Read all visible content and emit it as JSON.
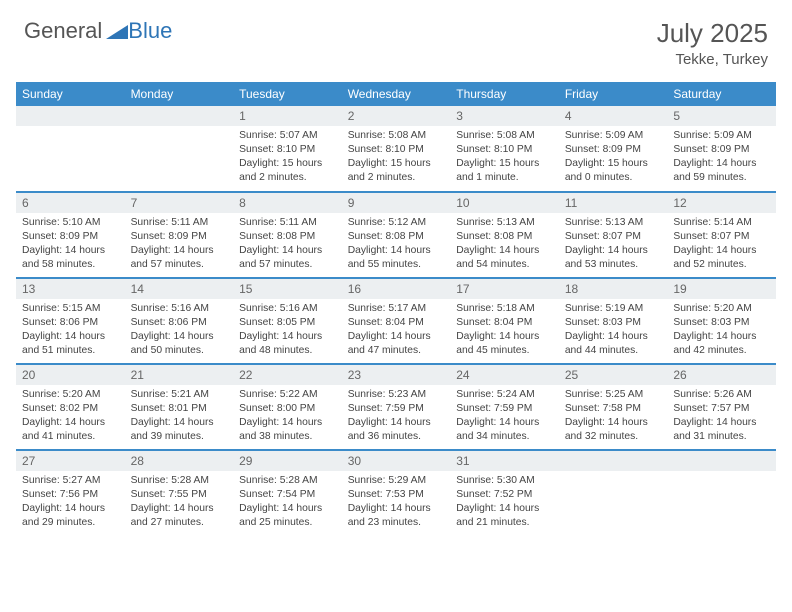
{
  "brand": {
    "part1": "General",
    "part2": "Blue"
  },
  "title": "July 2025",
  "location": "Tekke, Turkey",
  "colors": {
    "header_bg": "#3b8bc9",
    "header_text": "#ffffff",
    "daynum_bg": "#eceff1",
    "row_border": "#3b8bc9",
    "brand_blue": "#2e75b6",
    "text": "#444444"
  },
  "weekdays": [
    "Sunday",
    "Monday",
    "Tuesday",
    "Wednesday",
    "Thursday",
    "Friday",
    "Saturday"
  ],
  "weeks": [
    [
      {
        "n": "",
        "sunrise": "",
        "sunset": "",
        "daylight": ""
      },
      {
        "n": "",
        "sunrise": "",
        "sunset": "",
        "daylight": ""
      },
      {
        "n": "1",
        "sunrise": "Sunrise: 5:07 AM",
        "sunset": "Sunset: 8:10 PM",
        "daylight": "Daylight: 15 hours and 2 minutes."
      },
      {
        "n": "2",
        "sunrise": "Sunrise: 5:08 AM",
        "sunset": "Sunset: 8:10 PM",
        "daylight": "Daylight: 15 hours and 2 minutes."
      },
      {
        "n": "3",
        "sunrise": "Sunrise: 5:08 AM",
        "sunset": "Sunset: 8:10 PM",
        "daylight": "Daylight: 15 hours and 1 minute."
      },
      {
        "n": "4",
        "sunrise": "Sunrise: 5:09 AM",
        "sunset": "Sunset: 8:09 PM",
        "daylight": "Daylight: 15 hours and 0 minutes."
      },
      {
        "n": "5",
        "sunrise": "Sunrise: 5:09 AM",
        "sunset": "Sunset: 8:09 PM",
        "daylight": "Daylight: 14 hours and 59 minutes."
      }
    ],
    [
      {
        "n": "6",
        "sunrise": "Sunrise: 5:10 AM",
        "sunset": "Sunset: 8:09 PM",
        "daylight": "Daylight: 14 hours and 58 minutes."
      },
      {
        "n": "7",
        "sunrise": "Sunrise: 5:11 AM",
        "sunset": "Sunset: 8:09 PM",
        "daylight": "Daylight: 14 hours and 57 minutes."
      },
      {
        "n": "8",
        "sunrise": "Sunrise: 5:11 AM",
        "sunset": "Sunset: 8:08 PM",
        "daylight": "Daylight: 14 hours and 57 minutes."
      },
      {
        "n": "9",
        "sunrise": "Sunrise: 5:12 AM",
        "sunset": "Sunset: 8:08 PM",
        "daylight": "Daylight: 14 hours and 55 minutes."
      },
      {
        "n": "10",
        "sunrise": "Sunrise: 5:13 AM",
        "sunset": "Sunset: 8:08 PM",
        "daylight": "Daylight: 14 hours and 54 minutes."
      },
      {
        "n": "11",
        "sunrise": "Sunrise: 5:13 AM",
        "sunset": "Sunset: 8:07 PM",
        "daylight": "Daylight: 14 hours and 53 minutes."
      },
      {
        "n": "12",
        "sunrise": "Sunrise: 5:14 AM",
        "sunset": "Sunset: 8:07 PM",
        "daylight": "Daylight: 14 hours and 52 minutes."
      }
    ],
    [
      {
        "n": "13",
        "sunrise": "Sunrise: 5:15 AM",
        "sunset": "Sunset: 8:06 PM",
        "daylight": "Daylight: 14 hours and 51 minutes."
      },
      {
        "n": "14",
        "sunrise": "Sunrise: 5:16 AM",
        "sunset": "Sunset: 8:06 PM",
        "daylight": "Daylight: 14 hours and 50 minutes."
      },
      {
        "n": "15",
        "sunrise": "Sunrise: 5:16 AM",
        "sunset": "Sunset: 8:05 PM",
        "daylight": "Daylight: 14 hours and 48 minutes."
      },
      {
        "n": "16",
        "sunrise": "Sunrise: 5:17 AM",
        "sunset": "Sunset: 8:04 PM",
        "daylight": "Daylight: 14 hours and 47 minutes."
      },
      {
        "n": "17",
        "sunrise": "Sunrise: 5:18 AM",
        "sunset": "Sunset: 8:04 PM",
        "daylight": "Daylight: 14 hours and 45 minutes."
      },
      {
        "n": "18",
        "sunrise": "Sunrise: 5:19 AM",
        "sunset": "Sunset: 8:03 PM",
        "daylight": "Daylight: 14 hours and 44 minutes."
      },
      {
        "n": "19",
        "sunrise": "Sunrise: 5:20 AM",
        "sunset": "Sunset: 8:03 PM",
        "daylight": "Daylight: 14 hours and 42 minutes."
      }
    ],
    [
      {
        "n": "20",
        "sunrise": "Sunrise: 5:20 AM",
        "sunset": "Sunset: 8:02 PM",
        "daylight": "Daylight: 14 hours and 41 minutes."
      },
      {
        "n": "21",
        "sunrise": "Sunrise: 5:21 AM",
        "sunset": "Sunset: 8:01 PM",
        "daylight": "Daylight: 14 hours and 39 minutes."
      },
      {
        "n": "22",
        "sunrise": "Sunrise: 5:22 AM",
        "sunset": "Sunset: 8:00 PM",
        "daylight": "Daylight: 14 hours and 38 minutes."
      },
      {
        "n": "23",
        "sunrise": "Sunrise: 5:23 AM",
        "sunset": "Sunset: 7:59 PM",
        "daylight": "Daylight: 14 hours and 36 minutes."
      },
      {
        "n": "24",
        "sunrise": "Sunrise: 5:24 AM",
        "sunset": "Sunset: 7:59 PM",
        "daylight": "Daylight: 14 hours and 34 minutes."
      },
      {
        "n": "25",
        "sunrise": "Sunrise: 5:25 AM",
        "sunset": "Sunset: 7:58 PM",
        "daylight": "Daylight: 14 hours and 32 minutes."
      },
      {
        "n": "26",
        "sunrise": "Sunrise: 5:26 AM",
        "sunset": "Sunset: 7:57 PM",
        "daylight": "Daylight: 14 hours and 31 minutes."
      }
    ],
    [
      {
        "n": "27",
        "sunrise": "Sunrise: 5:27 AM",
        "sunset": "Sunset: 7:56 PM",
        "daylight": "Daylight: 14 hours and 29 minutes."
      },
      {
        "n": "28",
        "sunrise": "Sunrise: 5:28 AM",
        "sunset": "Sunset: 7:55 PM",
        "daylight": "Daylight: 14 hours and 27 minutes."
      },
      {
        "n": "29",
        "sunrise": "Sunrise: 5:28 AM",
        "sunset": "Sunset: 7:54 PM",
        "daylight": "Daylight: 14 hours and 25 minutes."
      },
      {
        "n": "30",
        "sunrise": "Sunrise: 5:29 AM",
        "sunset": "Sunset: 7:53 PM",
        "daylight": "Daylight: 14 hours and 23 minutes."
      },
      {
        "n": "31",
        "sunrise": "Sunrise: 5:30 AM",
        "sunset": "Sunset: 7:52 PM",
        "daylight": "Daylight: 14 hours and 21 minutes."
      },
      {
        "n": "",
        "sunrise": "",
        "sunset": "",
        "daylight": ""
      },
      {
        "n": "",
        "sunrise": "",
        "sunset": "",
        "daylight": ""
      }
    ]
  ]
}
